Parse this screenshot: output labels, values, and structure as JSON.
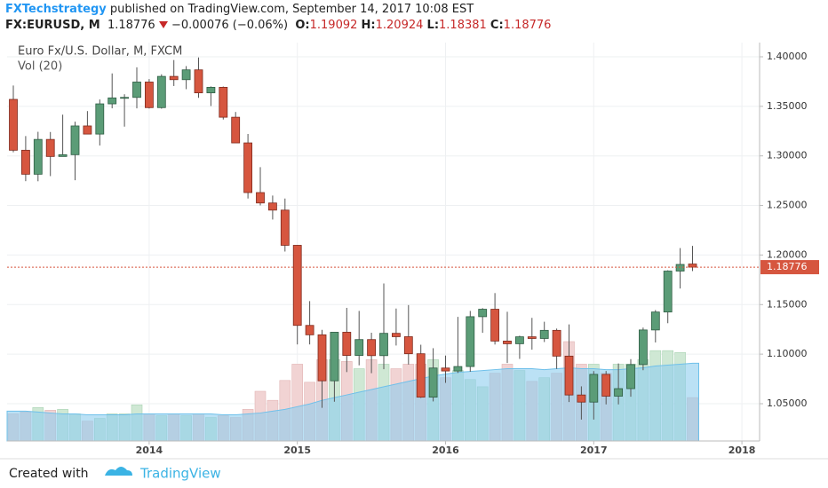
{
  "header": {
    "author": "FXTechstrategy",
    "published": "published on TradingView.com, September 14, 2017 10:08 EST",
    "symbol": "FX:EURUSD, M",
    "price": "1.18776",
    "change": "−0.00076 (−0.06%)",
    "ohlc": [
      {
        "label": "O:",
        "value": "1.19092"
      },
      {
        "label": "H:",
        "value": "1.20924"
      },
      {
        "label": "L:",
        "value": "1.18381"
      },
      {
        "label": "C:",
        "value": "1.18776"
      }
    ]
  },
  "chart_data": {
    "type": "candlestick",
    "title": "Euro Fx/U.S. Dollar, M, FXCM",
    "indicator": "Vol (20)",
    "categories": [
      null,
      null,
      null,
      null,
      null,
      null,
      null,
      null,
      null,
      null,
      null,
      "2014",
      null,
      null,
      null,
      null,
      null,
      null,
      null,
      null,
      null,
      null,
      null,
      "2015",
      null,
      null,
      null,
      null,
      null,
      null,
      null,
      null,
      null,
      null,
      null,
      "2016",
      null,
      null,
      null,
      null,
      null,
      null,
      null,
      null,
      null,
      null,
      null,
      "2017",
      null,
      null,
      null,
      null,
      null,
      null,
      null,
      null,
      null,
      null,
      null,
      "2018"
    ],
    "open": [
      1.357,
      1.3057,
      1.2815,
      1.3166,
      1.2994,
      1.3012,
      1.3302,
      1.322,
      1.3525,
      1.3585,
      1.359,
      1.3745,
      1.3487,
      1.3802,
      1.3769,
      1.3868,
      1.3636,
      1.3692,
      1.339,
      1.3131,
      1.263,
      1.2525,
      1.2453,
      1.2098,
      1.129,
      1.1195,
      1.0731,
      1.1221,
      1.0987,
      1.1147,
      1.0985,
      1.121,
      1.1176,
      1.1004,
      1.0566,
      1.086,
      1.083,
      1.0875,
      1.1378,
      1.1453,
      1.1132,
      1.1105,
      1.1175,
      1.1158,
      1.124,
      1.098,
      1.0588,
      1.0516,
      1.0796,
      1.0576,
      1.0652,
      1.0895,
      1.1244,
      1.1425,
      1.1838,
      1.19092,
      null,
      null,
      null,
      null
    ],
    "high": [
      1.371,
      1.32,
      1.3243,
      1.3241,
      1.3416,
      1.3345,
      1.3452,
      1.3569,
      1.3832,
      1.3622,
      1.3893,
      1.3775,
      1.3823,
      1.3967,
      1.3906,
      1.3993,
      1.3701,
      1.37,
      1.3443,
      1.3221,
      1.2886,
      1.26,
      1.257,
      1.21,
      1.1535,
      1.1245,
      1.1214,
      1.1467,
      1.1436,
      1.1216,
      1.1713,
      1.146,
      1.1495,
      1.1095,
      1.106,
      1.0986,
      1.1376,
      1.1436,
      1.1464,
      1.1616,
      1.1427,
      1.1186,
      1.1366,
      1.1327,
      1.1258,
      1.13,
      1.0675,
      1.0829,
      1.083,
      1.0906,
      1.095,
      1.1268,
      1.1445,
      1.1846,
      1.207,
      1.20924,
      null,
      null,
      null,
      null
    ],
    "low": [
      1.3036,
      1.2745,
      1.2744,
      1.2796,
      1.2994,
      1.2755,
      1.3222,
      1.3105,
      1.348,
      1.3295,
      1.348,
      1.3478,
      1.3476,
      1.3705,
      1.3673,
      1.3586,
      1.3503,
      1.3367,
      1.3133,
      1.257,
      1.25,
      1.2358,
      1.2035,
      1.1098,
      1.1098,
      1.0458,
      1.052,
      1.0819,
      1.0887,
      1.0808,
      1.0848,
      1.1087,
      1.0895,
      1.0558,
      1.0523,
      1.071,
      1.081,
      1.0822,
      1.1215,
      1.1097,
      1.0911,
      1.0952,
      1.1045,
      1.1122,
      1.0851,
      1.0517,
      1.034,
      1.034,
      1.0493,
      1.0493,
      1.057,
      1.0838,
      1.1118,
      1.1312,
      1.1662,
      1.18381,
      null,
      null,
      null,
      null
    ],
    "close": [
      1.3057,
      1.2815,
      1.3166,
      1.2994,
      1.3012,
      1.3302,
      1.322,
      1.3525,
      1.3585,
      1.359,
      1.3745,
      1.3487,
      1.3802,
      1.3769,
      1.3868,
      1.3636,
      1.3692,
      1.339,
      1.3131,
      1.263,
      1.2525,
      1.2453,
      1.2098,
      1.129,
      1.1195,
      1.0731,
      1.1221,
      1.0987,
      1.1147,
      1.0985,
      1.121,
      1.1176,
      1.1004,
      1.0566,
      1.086,
      1.083,
      1.0875,
      1.1378,
      1.1453,
      1.1132,
      1.1105,
      1.1175,
      1.1158,
      1.124,
      1.098,
      1.0588,
      1.0516,
      1.0796,
      1.0576,
      1.0652,
      1.0895,
      1.1244,
      1.1425,
      1.1838,
      1.1905,
      1.18776,
      null,
      null,
      null,
      null
    ],
    "volume": [
      30,
      32,
      37,
      34,
      35,
      30,
      22,
      25,
      30,
      30,
      40,
      30,
      28,
      30,
      28,
      30,
      26,
      28,
      26,
      35,
      55,
      45,
      67,
      85,
      65,
      90,
      90,
      88,
      80,
      90,
      85,
      80,
      85,
      85,
      90,
      70,
      78,
      68,
      60,
      75,
      85,
      78,
      66,
      70,
      75,
      110,
      85,
      85,
      75,
      85,
      85,
      90,
      100,
      100,
      98,
      48,
      null,
      null,
      null,
      null
    ],
    "volume_ma": [
      33,
      33,
      32,
      31,
      30,
      30,
      29,
      29,
      29,
      29,
      30,
      30,
      30,
      30,
      30,
      30,
      30,
      29,
      29,
      30,
      31,
      33,
      35,
      38,
      41,
      45,
      48,
      51,
      54,
      57,
      60,
      63,
      66,
      69,
      72,
      74,
      76,
      77,
      78,
      79,
      80,
      80,
      80,
      79,
      80,
      81,
      80,
      80,
      79,
      79,
      80,
      81,
      83,
      84,
      85,
      86,
      null,
      null,
      null,
      null
    ],
    "ylim": [
      1.0124,
      1.4143
    ],
    "yticks": [
      {
        "value": 1.05,
        "label": "1.05000"
      },
      {
        "value": 1.1,
        "label": "1.10000"
      },
      {
        "value": 1.15,
        "label": "1.15000"
      },
      {
        "value": 1.2,
        "label": "1.20000"
      },
      {
        "value": 1.25,
        "label": "1.25000"
      },
      {
        "value": 1.3,
        "label": "1.30000"
      },
      {
        "value": 1.35,
        "label": "1.35000"
      },
      {
        "value": 1.4,
        "label": "1.40000"
      }
    ],
    "price_line": 1.18776,
    "grid": true,
    "up_color": "#5b9c77",
    "down_color": "#d6563f",
    "up_volume_color": "#cfe8d4",
    "down_volume_color": "#f1d3d3",
    "volume_ma_color": "#8ecdee",
    "price_line_color": "#d6563f"
  },
  "footer": {
    "created": "Created with",
    "brand": "TradingView"
  }
}
